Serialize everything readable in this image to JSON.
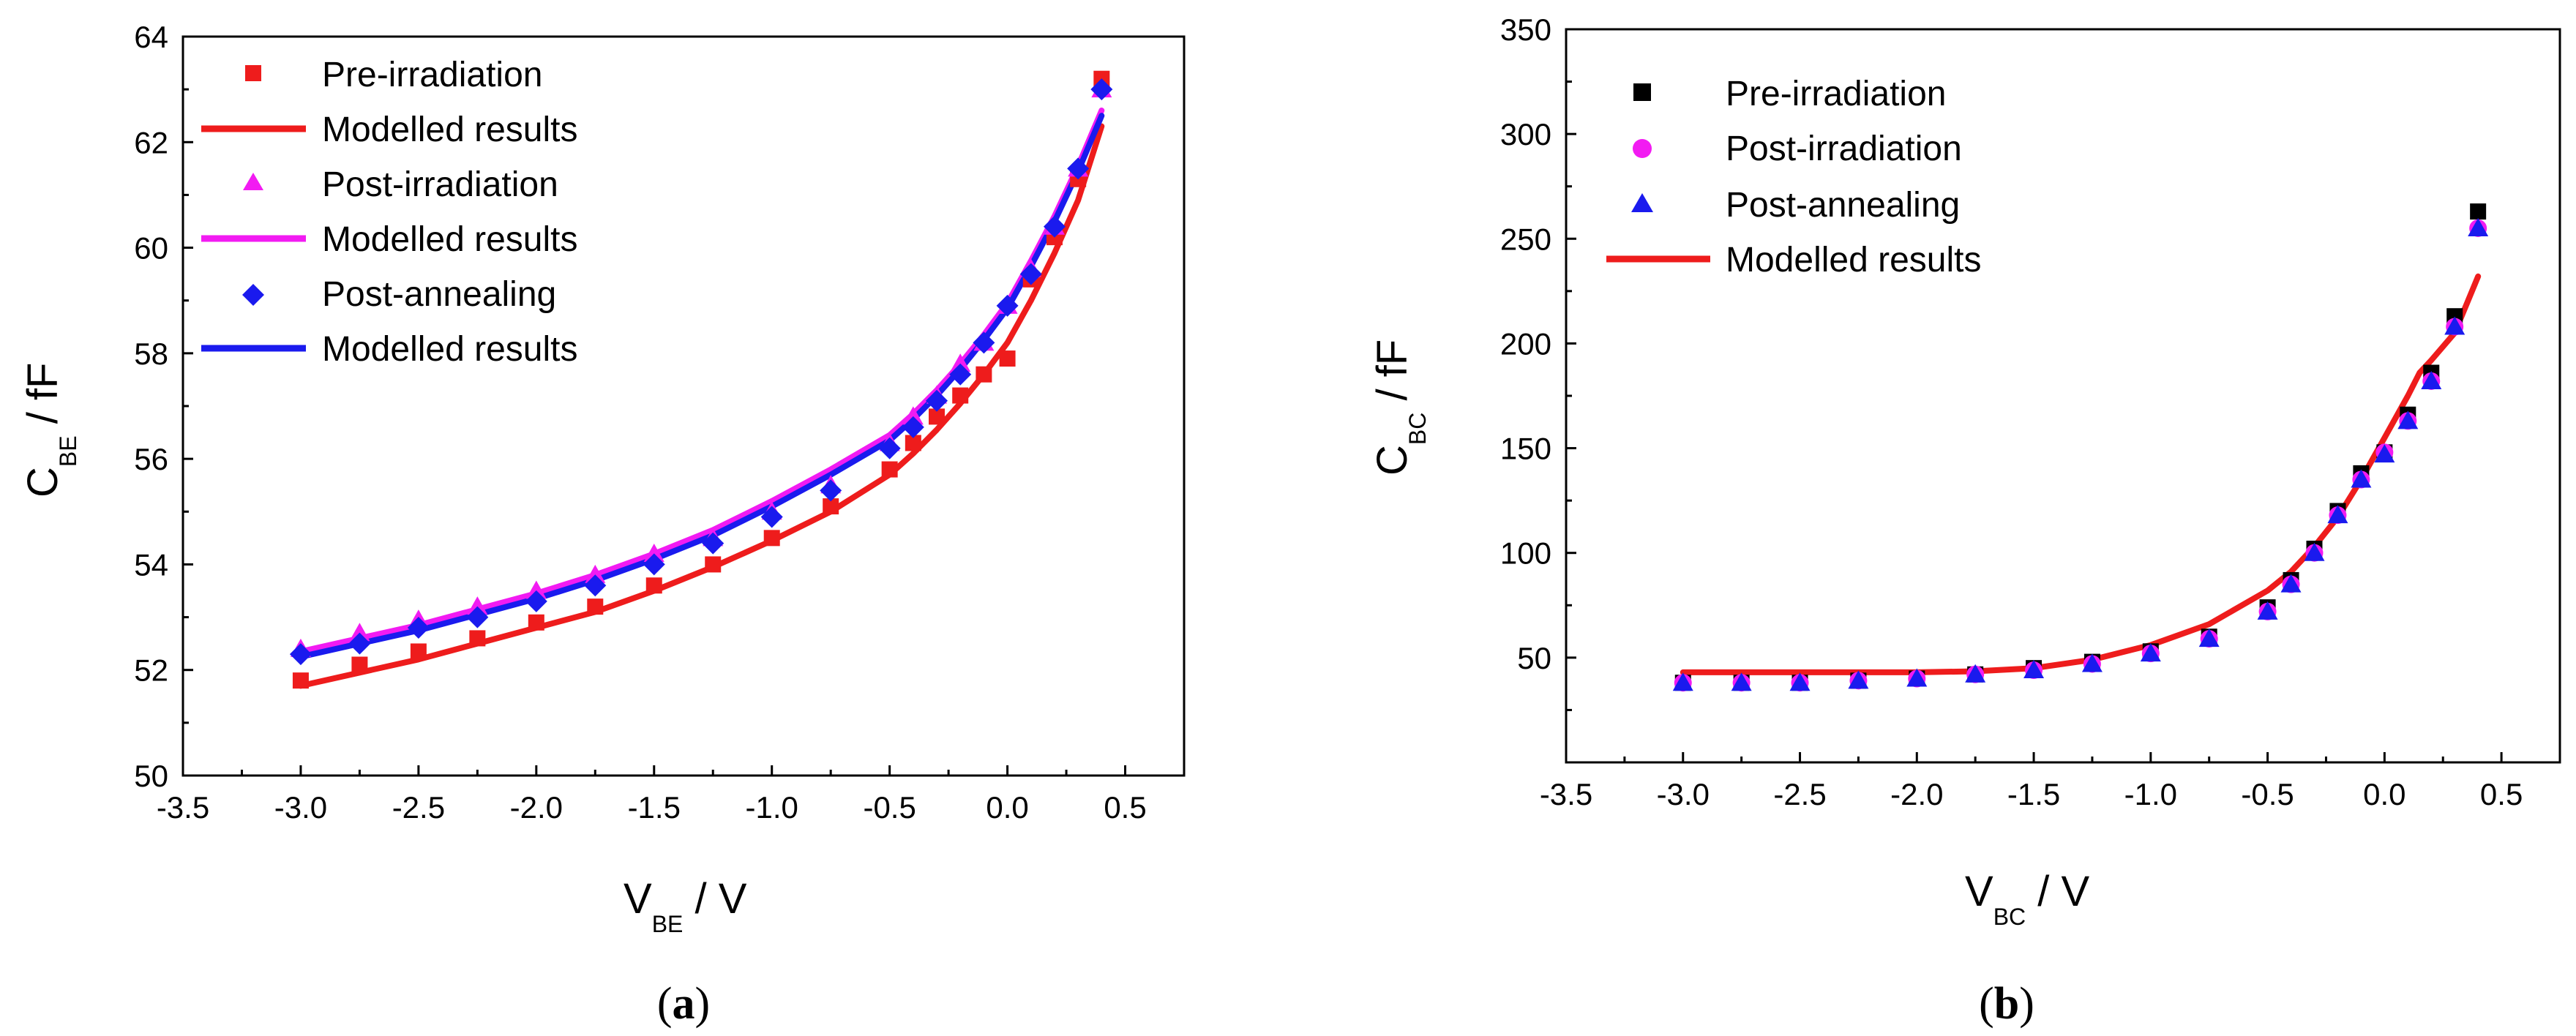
{
  "chart_data": [
    {
      "id": "a",
      "type": "scatter",
      "panel_label": "a",
      "xlabel": "V",
      "xlabel_sub": "BE",
      "xlabel_unit": " / V",
      "ylabel": "C",
      "ylabel_sub": "BE",
      "ylabel_unit": " / fF",
      "xlim": [
        -3.5,
        0.75
      ],
      "ylim": [
        50,
        64
      ],
      "xticks": [
        -3.5,
        -3.0,
        -2.5,
        -2.0,
        -1.5,
        -1.0,
        -0.5,
        0.0,
        0.5
      ],
      "xtick_labels": [
        "-3.5",
        "-3.0",
        "-2.5",
        "-2.0",
        "-1.5",
        "-1.0",
        "-0.5",
        "0.0",
        "0.5"
      ],
      "yticks": [
        50,
        52,
        54,
        56,
        58,
        60,
        62,
        64
      ],
      "ytick_labels": [
        "50",
        "52",
        "54",
        "56",
        "58",
        "60",
        "62",
        "64"
      ],
      "legend_position": "top-left",
      "series": [
        {
          "name": "Pre-irradiation",
          "kind": "markers",
          "marker": "square",
          "color": "#ee1c1c",
          "x": [
            -3.0,
            -2.75,
            -2.5,
            -2.25,
            -2.0,
            -1.75,
            -1.5,
            -1.25,
            -1.0,
            -0.75,
            -0.5,
            -0.4,
            -0.3,
            -0.2,
            -0.1,
            0.0,
            0.1,
            0.2,
            0.3,
            0.4
          ],
          "y": [
            51.8,
            52.1,
            52.35,
            52.6,
            52.9,
            53.2,
            53.6,
            54.0,
            54.5,
            55.1,
            55.8,
            56.3,
            56.8,
            57.2,
            57.6,
            57.9,
            59.4,
            60.2,
            61.3,
            63.2
          ]
        },
        {
          "name": "Modelled results",
          "kind": "line",
          "color": "#ee1c1c",
          "x": [
            -3.0,
            -2.75,
            -2.5,
            -2.25,
            -2.0,
            -1.75,
            -1.5,
            -1.25,
            -1.0,
            -0.75,
            -0.5,
            -0.4,
            -0.3,
            -0.2,
            -0.1,
            0.0,
            0.1,
            0.2,
            0.3,
            0.4
          ],
          "y": [
            51.7,
            51.95,
            52.2,
            52.5,
            52.8,
            53.1,
            53.5,
            53.95,
            54.45,
            55.0,
            55.7,
            56.1,
            56.55,
            57.05,
            57.6,
            58.2,
            59.0,
            59.9,
            60.9,
            62.3
          ]
        },
        {
          "name": "Post-irradiation",
          "kind": "markers",
          "marker": "triangle",
          "color": "#f21bf2",
          "x": [
            -3.0,
            -2.75,
            -2.5,
            -2.25,
            -2.0,
            -1.75,
            -1.5,
            -1.25,
            -1.0,
            -0.75,
            -0.5,
            -0.4,
            -0.3,
            -0.2,
            -0.1,
            0.0,
            0.1,
            0.2,
            0.3,
            0.4
          ],
          "y": [
            52.4,
            52.7,
            52.95,
            53.2,
            53.5,
            53.8,
            54.2,
            54.5,
            55.0,
            55.5,
            56.3,
            56.8,
            57.2,
            57.8,
            58.2,
            58.9,
            59.6,
            60.4,
            61.5,
            63.0
          ]
        },
        {
          "name": "Modelled results",
          "kind": "line",
          "color": "#f21bf2",
          "x": [
            -3.0,
            -2.75,
            -2.5,
            -2.25,
            -2.0,
            -1.75,
            -1.5,
            -1.25,
            -1.0,
            -0.75,
            -0.5,
            -0.4,
            -0.3,
            -0.2,
            -0.1,
            0.0,
            0.1,
            0.2,
            0.3,
            0.4
          ],
          "y": [
            52.35,
            52.6,
            52.85,
            53.15,
            53.45,
            53.8,
            54.2,
            54.65,
            55.2,
            55.8,
            56.45,
            56.85,
            57.3,
            57.8,
            58.35,
            58.95,
            59.75,
            60.6,
            61.55,
            62.6
          ]
        },
        {
          "name": "Post-annealing",
          "kind": "markers",
          "marker": "diamond",
          "color": "#1a1aee",
          "x": [
            -3.0,
            -2.75,
            -2.5,
            -2.25,
            -2.0,
            -1.75,
            -1.5,
            -1.25,
            -1.0,
            -0.75,
            -0.5,
            -0.4,
            -0.3,
            -0.2,
            -0.1,
            0.0,
            0.1,
            0.2,
            0.3,
            0.4
          ],
          "y": [
            52.3,
            52.5,
            52.8,
            53.0,
            53.3,
            53.6,
            54.0,
            54.4,
            54.9,
            55.4,
            56.2,
            56.6,
            57.1,
            57.6,
            58.2,
            58.9,
            59.5,
            60.4,
            61.5,
            63.0
          ]
        },
        {
          "name": "Modelled results",
          "kind": "line",
          "color": "#1a1aee",
          "x": [
            -3.0,
            -2.75,
            -2.5,
            -2.25,
            -2.0,
            -1.75,
            -1.5,
            -1.25,
            -1.0,
            -0.75,
            -0.5,
            -0.4,
            -0.3,
            -0.2,
            -0.1,
            0.0,
            0.1,
            0.2,
            0.3,
            0.4
          ],
          "y": [
            52.25,
            52.5,
            52.75,
            53.05,
            53.35,
            53.7,
            54.1,
            54.55,
            55.1,
            55.7,
            56.35,
            56.75,
            57.2,
            57.7,
            58.25,
            58.85,
            59.65,
            60.5,
            61.45,
            62.5
          ]
        }
      ]
    },
    {
      "id": "b",
      "type": "scatter",
      "panel_label": "b",
      "xlabel": "V",
      "xlabel_sub": "BC",
      "xlabel_unit": " / V",
      "ylabel": "C",
      "ylabel_sub": "BC",
      "ylabel_unit": " / fF",
      "xlim": [
        -3.5,
        0.75
      ],
      "ylim": [
        0,
        350
      ],
      "xticks": [
        -3.5,
        -3.0,
        -2.5,
        -2.0,
        -1.5,
        -1.0,
        -0.5,
        0.0,
        0.5
      ],
      "xtick_labels": [
        "-3.5",
        "-3.0",
        "-2.5",
        "-2.0",
        "-1.5",
        "-1.0",
        "-0.5",
        "0.0",
        "0.5"
      ],
      "yticks": [
        50,
        100,
        150,
        200,
        250,
        300,
        350
      ],
      "ytick_labels": [
        "50",
        "100",
        "150",
        "200",
        "250",
        "300",
        "350"
      ],
      "legend_position": "top-left",
      "series": [
        {
          "name": "Pre-irradiation",
          "kind": "markers",
          "marker": "square",
          "color": "#000000",
          "x": [
            -3.0,
            -2.75,
            -2.5,
            -2.25,
            -2.0,
            -1.75,
            -1.5,
            -1.25,
            -1.0,
            -0.75,
            -0.5,
            -0.4,
            -0.3,
            -0.2,
            -0.1,
            0.0,
            0.1,
            0.2,
            0.3,
            0.4
          ],
          "y": [
            38,
            38,
            38,
            39,
            40,
            42,
            45,
            48,
            53,
            60,
            74,
            87,
            102,
            120,
            138,
            148,
            166,
            186,
            213,
            263
          ]
        },
        {
          "name": "Post-irradiation",
          "kind": "markers",
          "marker": "circle",
          "color": "#f21bf2",
          "x": [
            -3.0,
            -2.75,
            -2.5,
            -2.25,
            -2.0,
            -1.75,
            -1.5,
            -1.25,
            -1.0,
            -0.75,
            -0.5,
            -0.4,
            -0.3,
            -0.2,
            -0.1,
            0.0,
            0.1,
            0.2,
            0.3,
            0.4
          ],
          "y": [
            38,
            38,
            38,
            39,
            40,
            42,
            44,
            47,
            52,
            59,
            72,
            85,
            100,
            118,
            135,
            148,
            163,
            182,
            208,
            255
          ]
        },
        {
          "name": "Post-annealing",
          "kind": "markers",
          "marker": "triangle",
          "color": "#1a1aee",
          "x": [
            -3.0,
            -2.75,
            -2.5,
            -2.25,
            -2.0,
            -1.75,
            -1.5,
            -1.25,
            -1.0,
            -0.75,
            -0.5,
            -0.4,
            -0.3,
            -0.2,
            -0.1,
            0.0,
            0.1,
            0.2,
            0.3,
            0.4
          ],
          "y": [
            38,
            38,
            38,
            39,
            40,
            42,
            44,
            47,
            52,
            59,
            72,
            85,
            100,
            118,
            135,
            147,
            163,
            182,
            208,
            255
          ]
        },
        {
          "name": "Modelled results",
          "kind": "line",
          "color": "#ee1c1c",
          "x": [
            -3.0,
            -2.5,
            -2.0,
            -1.75,
            -1.5,
            -1.25,
            -1.0,
            -0.75,
            -0.5,
            -0.4,
            -0.3,
            -0.2,
            -0.1,
            0.0,
            0.1,
            0.15,
            0.2,
            0.3,
            0.4
          ],
          "y": [
            43,
            43,
            43,
            43.5,
            45,
            49,
            56,
            66,
            82,
            91,
            103,
            117,
            135,
            155,
            175,
            186,
            192,
            205,
            232
          ]
        }
      ]
    }
  ]
}
